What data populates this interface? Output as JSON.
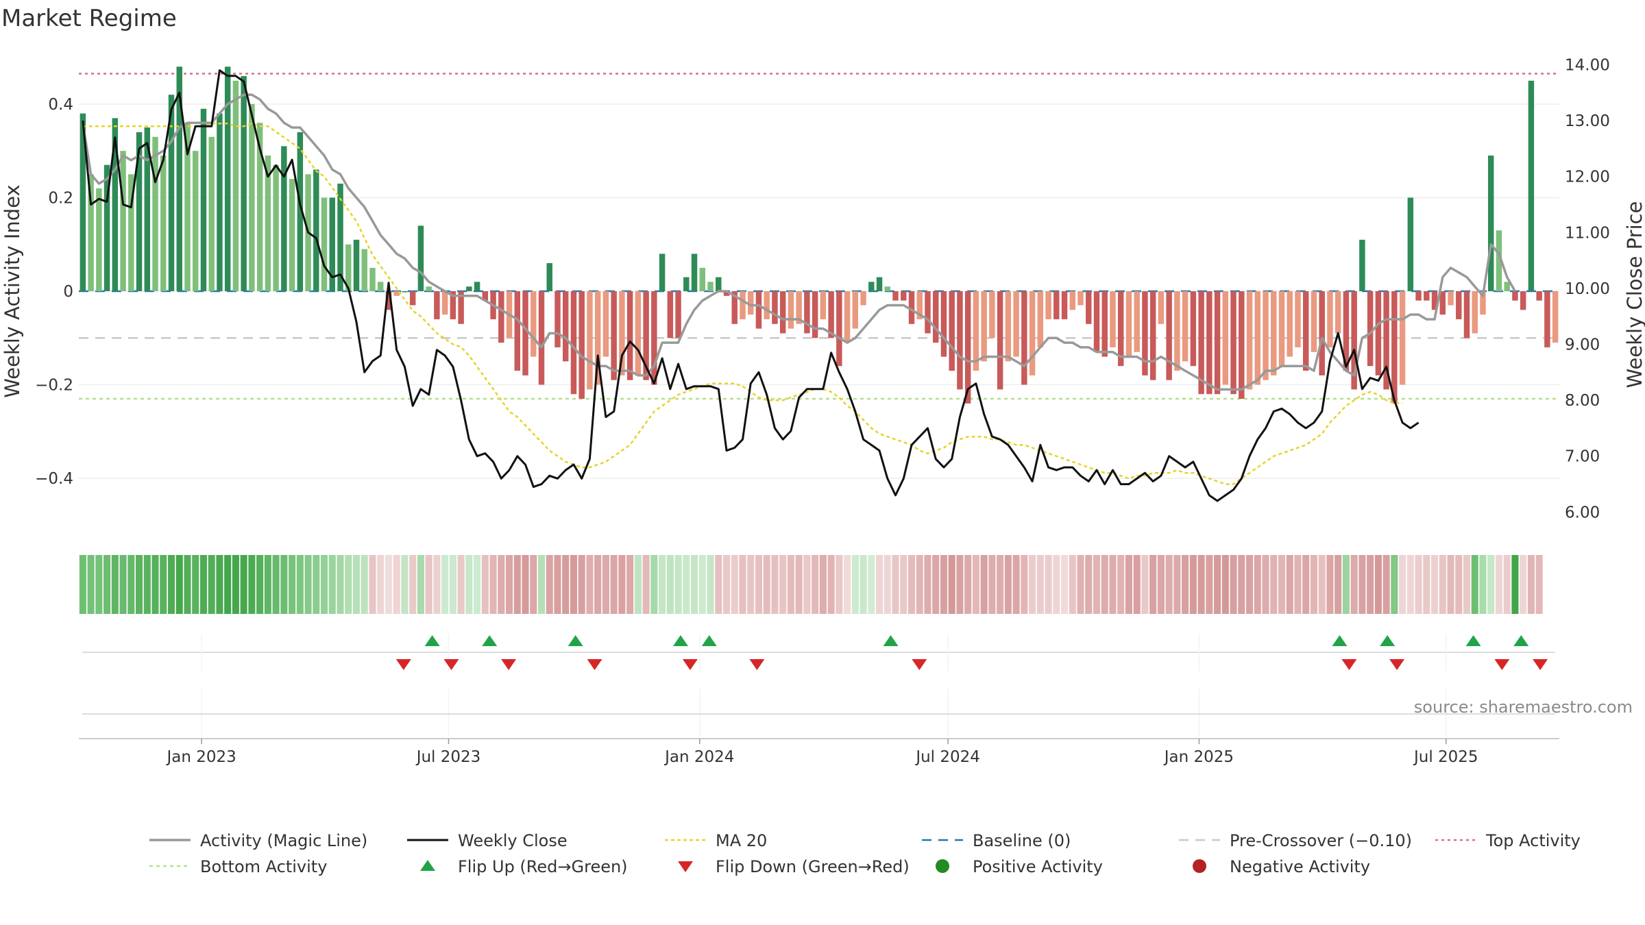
{
  "chart_data": {
    "type": "bar",
    "title": "Market Regime",
    "source": "source: sharemaestro.com",
    "ylabel_left": "Weekly Activity Index",
    "ylabel_right": "Weekly Close Price",
    "ylim_left": [
      -0.52,
      0.52
    ],
    "ylim_right": [
      5.6,
      14.3
    ],
    "left_ticks": [
      {
        "v": 0.4,
        "label": "0.4"
      },
      {
        "v": 0.2,
        "label": "0.2"
      },
      {
        "v": 0,
        "label": "0"
      },
      {
        "v": -0.2,
        "label": "−0.2"
      },
      {
        "v": -0.4,
        "label": "−0.4"
      }
    ],
    "right_ticks": [
      {
        "v": 14,
        "label": "14.00"
      },
      {
        "v": 13,
        "label": "13.00"
      },
      {
        "v": 12,
        "label": "12.00"
      },
      {
        "v": 11,
        "label": "11.00"
      },
      {
        "v": 10,
        "label": "10.00"
      },
      {
        "v": 9,
        "label": "9.00"
      },
      {
        "v": 8,
        "label": "8.00"
      },
      {
        "v": 7,
        "label": "7.00"
      },
      {
        "v": 6,
        "label": "6.00"
      }
    ],
    "x_start": "2022-10-03",
    "x_end": "2025-09-22",
    "x_ticks": [
      {
        "date": "2023-01-01",
        "label": "Jan 2023"
      },
      {
        "date": "2023-07-01",
        "label": "Jul 2023"
      },
      {
        "date": "2024-01-01",
        "label": "Jan 2024"
      },
      {
        "date": "2024-07-01",
        "label": "Jul 2024"
      },
      {
        "date": "2025-01-01",
        "label": "Jan 2025"
      },
      {
        "date": "2025-07-01",
        "label": "Jul 2025"
      }
    ],
    "reference_lines": {
      "top_activity": 0.465,
      "pre_crossover": -0.1,
      "bottom_activity": -0.23,
      "baseline": 0
    },
    "activity_values": [
      0.38,
      0.25,
      0.22,
      0.27,
      0.37,
      0.3,
      0.25,
      0.34,
      0.35,
      0.33,
      0.29,
      0.42,
      0.48,
      0.36,
      0.3,
      0.39,
      0.33,
      0.38,
      0.48,
      0.45,
      0.46,
      0.4,
      0.36,
      0.29,
      0.27,
      0.31,
      0.24,
      0.34,
      0.25,
      0.26,
      0.2,
      0.2,
      0.23,
      0.1,
      0.11,
      0.09,
      0.05,
      0.02,
      -0.04,
      -0.01,
      0.0,
      -0.03,
      0.14,
      0.01,
      -0.06,
      -0.05,
      -0.06,
      -0.07,
      0.01,
      0.02,
      -0.02,
      -0.06,
      -0.11,
      -0.1,
      -0.17,
      -0.18,
      -0.14,
      -0.2,
      0.06,
      -0.12,
      -0.15,
      -0.22,
      -0.23,
      -0.21,
      -0.2,
      -0.14,
      -0.19,
      -0.18,
      -0.19,
      -0.18,
      -0.19,
      -0.2,
      0.08,
      -0.1,
      -0.1,
      0.03,
      0.08,
      0.05,
      0.02,
      0.03,
      -0.01,
      -0.07,
      -0.06,
      -0.05,
      -0.08,
      -0.06,
      -0.07,
      -0.09,
      -0.08,
      -0.07,
      -0.09,
      -0.1,
      -0.06,
      -0.1,
      -0.16,
      -0.11,
      -0.08,
      -0.03,
      0.02,
      0.03,
      0.01,
      -0.02,
      -0.02,
      -0.07,
      -0.06,
      -0.09,
      -0.11,
      -0.14,
      -0.17,
      -0.21,
      -0.24,
      -0.17,
      -0.15,
      -0.1,
      -0.21,
      -0.15,
      -0.14,
      -0.2,
      -0.18,
      -0.12,
      -0.06,
      -0.06,
      -0.06,
      -0.04,
      -0.03,
      -0.07,
      -0.13,
      -0.14,
      -0.12,
      -0.16,
      -0.14,
      -0.13,
      -0.18,
      -0.19,
      -0.07,
      -0.19,
      -0.17,
      -0.15,
      -0.16,
      -0.22,
      -0.22,
      -0.22,
      -0.2,
      -0.22,
      -0.23,
      -0.21,
      -0.2,
      -0.19,
      -0.18,
      -0.16,
      -0.14,
      -0.12,
      -0.17,
      -0.13,
      -0.18,
      -0.12,
      -0.09,
      -0.17,
      -0.21,
      0.11,
      -0.16,
      -0.18,
      -0.21,
      -0.24,
      -0.2,
      0.2,
      -0.02,
      -0.02,
      -0.04,
      -0.05,
      -0.03,
      -0.06,
      -0.1,
      -0.09,
      -0.05,
      0.29,
      0.13,
      0.02,
      -0.02,
      -0.04,
      0.45,
      -0.02,
      -0.12,
      -0.11
    ],
    "price_values": [
      13.0,
      11.5,
      11.6,
      11.55,
      12.7,
      11.5,
      11.45,
      12.5,
      12.6,
      11.9,
      12.3,
      13.2,
      13.5,
      12.4,
      12.9,
      12.9,
      12.9,
      13.9,
      13.8,
      13.8,
      13.7,
      13.1,
      12.5,
      12.0,
      12.2,
      12.0,
      12.3,
      11.5,
      11.0,
      10.9,
      10.4,
      10.2,
      10.25,
      10.0,
      9.4,
      8.5,
      8.7,
      8.8,
      10.1,
      8.9,
      8.6,
      7.9,
      8.2,
      8.1,
      8.9,
      8.8,
      8.6,
      8.0,
      7.3,
      7.0,
      7.05,
      6.9,
      6.6,
      6.75,
      7.0,
      6.85,
      6.45,
      6.5,
      6.65,
      6.6,
      6.75,
      6.85,
      6.6,
      6.95,
      8.8,
      7.7,
      7.8,
      8.8,
      9.05,
      8.9,
      8.6,
      8.3,
      8.75,
      8.2,
      8.65,
      8.2,
      8.25,
      8.25,
      8.25,
      8.2,
      7.1,
      7.15,
      7.3,
      8.3,
      8.5,
      8.1,
      7.5,
      7.3,
      7.45,
      8.05,
      8.2,
      8.2,
      8.2,
      8.85,
      8.5,
      8.2,
      7.8,
      7.3,
      7.2,
      7.1,
      6.6,
      6.3,
      6.6,
      7.2,
      7.35,
      7.5,
      6.95,
      6.8,
      6.95,
      7.7,
      8.2,
      8.3,
      7.75,
      7.35,
      7.3,
      7.2,
      7.0,
      6.8,
      6.55,
      7.2,
      6.8,
      6.75,
      6.8,
      6.8,
      6.65,
      6.55,
      6.75,
      6.5,
      6.75,
      6.5,
      6.5,
      6.6,
      6.7,
      6.55,
      6.65,
      7.0,
      6.9,
      6.8,
      6.9,
      6.6,
      6.3,
      6.2,
      6.3,
      6.4,
      6.6,
      7.0,
      7.3,
      7.5,
      7.8,
      7.85,
      7.75,
      7.6,
      7.5,
      7.6,
      7.8,
      8.7,
      9.2,
      8.6,
      8.9,
      8.2,
      8.4,
      8.35,
      8.6,
      8.0,
      7.6,
      7.5,
      7.6
    ],
    "magic_values": [
      0.36,
      0.25,
      0.23,
      0.24,
      0.26,
      0.29,
      0.28,
      0.29,
      0.28,
      0.29,
      0.3,
      0.32,
      0.35,
      0.36,
      0.36,
      0.36,
      0.36,
      0.38,
      0.4,
      0.41,
      0.42,
      0.42,
      0.41,
      0.39,
      0.38,
      0.36,
      0.35,
      0.35,
      0.33,
      0.31,
      0.29,
      0.26,
      0.25,
      0.22,
      0.2,
      0.18,
      0.15,
      0.12,
      0.1,
      0.08,
      0.07,
      0.05,
      0.04,
      0.02,
      0.01,
      0.0,
      -0.01,
      -0.01,
      -0.01,
      -0.01,
      -0.02,
      -0.03,
      -0.04,
      -0.05,
      -0.06,
      -0.08,
      -0.1,
      -0.12,
      -0.09,
      -0.09,
      -0.1,
      -0.12,
      -0.14,
      -0.15,
      -0.16,
      -0.16,
      -0.17,
      -0.17,
      -0.17,
      -0.18,
      -0.18,
      -0.16,
      -0.11,
      -0.11,
      -0.11,
      -0.07,
      -0.04,
      -0.02,
      -0.01,
      0.0,
      0.0,
      -0.01,
      -0.02,
      -0.03,
      -0.03,
      -0.04,
      -0.05,
      -0.06,
      -0.06,
      -0.06,
      -0.07,
      -0.08,
      -0.08,
      -0.09,
      -0.1,
      -0.11,
      -0.1,
      -0.08,
      -0.06,
      -0.04,
      -0.03,
      -0.03,
      -0.03,
      -0.04,
      -0.05,
      -0.06,
      -0.08,
      -0.1,
      -0.12,
      -0.14,
      -0.15,
      -0.15,
      -0.14,
      -0.14,
      -0.14,
      -0.14,
      -0.15,
      -0.16,
      -0.14,
      -0.12,
      -0.1,
      -0.1,
      -0.11,
      -0.11,
      -0.12,
      -0.12,
      -0.13,
      -0.13,
      -0.13,
      -0.14,
      -0.14,
      -0.14,
      -0.15,
      -0.15,
      -0.14,
      -0.15,
      -0.16,
      -0.17,
      -0.18,
      -0.19,
      -0.2,
      -0.21,
      -0.21,
      -0.21,
      -0.21,
      -0.2,
      -0.19,
      -0.17,
      -0.17,
      -0.16,
      -0.16,
      -0.16,
      -0.16,
      -0.17,
      -0.1,
      -0.13,
      -0.15,
      -0.17,
      -0.18,
      -0.1,
      -0.09,
      -0.07,
      -0.06,
      -0.06,
      -0.06,
      -0.05,
      -0.05,
      -0.06,
      -0.06,
      0.03,
      0.05,
      0.04,
      0.03,
      0.01,
      -0.01,
      0.1,
      0.08,
      0.03,
      0.0
    ],
    "ma20_values": [
      12.9,
      12.9,
      12.9,
      12.9,
      12.9,
      12.9,
      12.9,
      12.9,
      12.9,
      12.9,
      12.9,
      12.9,
      12.9,
      12.9,
      12.9,
      12.9,
      12.95,
      12.95,
      12.95,
      12.9,
      12.9,
      12.95,
      12.9,
      12.9,
      12.8,
      12.7,
      12.6,
      12.5,
      12.3,
      12.1,
      12.0,
      11.8,
      11.6,
      11.4,
      11.2,
      10.9,
      10.6,
      10.4,
      10.2,
      10.0,
      9.8,
      9.6,
      9.5,
      9.35,
      9.2,
      9.1,
      9.0,
      8.95,
      8.8,
      8.6,
      8.4,
      8.2,
      8.0,
      7.8,
      7.7,
      7.55,
      7.4,
      7.25,
      7.1,
      7.0,
      6.9,
      6.85,
      6.8,
      6.8,
      6.85,
      6.9,
      7.0,
      7.1,
      7.2,
      7.4,
      7.6,
      7.8,
      7.9,
      8.0,
      8.1,
      8.15,
      8.2,
      8.25,
      8.3,
      8.3,
      8.3,
      8.3,
      8.25,
      8.15,
      8.05,
      8.0,
      8.0,
      8.0,
      8.05,
      8.1,
      8.15,
      8.2,
      8.2,
      8.15,
      8.05,
      7.9,
      7.8,
      7.65,
      7.5,
      7.4,
      7.35,
      7.3,
      7.25,
      7.2,
      7.1,
      7.05,
      7.1,
      7.15,
      7.25,
      7.3,
      7.35,
      7.35,
      7.35,
      7.3,
      7.3,
      7.25,
      7.2,
      7.2,
      7.15,
      7.1,
      7.05,
      7.0,
      6.95,
      6.9,
      6.85,
      6.8,
      6.75,
      6.7,
      6.7,
      6.65,
      6.6,
      6.65,
      6.65,
      6.7,
      6.7,
      6.7,
      6.75,
      6.7,
      6.7,
      6.65,
      6.6,
      6.55,
      6.5,
      6.5,
      6.6,
      6.7,
      6.8,
      6.9,
      7.0,
      7.05,
      7.1,
      7.15,
      7.2,
      7.3,
      7.4,
      7.6,
      7.75,
      7.9,
      8.0,
      8.1,
      8.15,
      8.1,
      8.0,
      7.95,
      7.95
    ],
    "strip_colors": [
      "#6fbf73",
      "#73c277",
      "#75c27a",
      "#6dbd71",
      "#5fb565",
      "#68ba6c",
      "#66b96a",
      "#5bb361",
      "#5ab260",
      "#56b05c",
      "#5ab260",
      "#4fac55",
      "#46a84c",
      "#53ae59",
      "#5ab260",
      "#4fac55",
      "#53ae59",
      "#4ca952",
      "#44a64a",
      "#45a64b",
      "#47a74d",
      "#4dab53",
      "#55af5b",
      "#60b566",
      "#68ba6c",
      "#6cbd70",
      "#77c37b",
      "#7dc681",
      "#86ca89",
      "#8ccd8f",
      "#94d197",
      "#9ad49d",
      "#a3d8a5",
      "#b1deb2",
      "#b6e0b7",
      "#bde3be",
      "#e8c5c5",
      "#eed5d5",
      "#eedddd",
      "#f1d3d3",
      "#c3e5c4",
      "#eac9c9",
      "#a8daab",
      "#e8c5c5",
      "#ecd0d0",
      "#ccead0",
      "#cbe9cd",
      "#e9c8c8",
      "#c6e7c8",
      "#ccead0",
      "#e6c0c0",
      "#e2b5b5",
      "#deacac",
      "#dba6a6",
      "#d79d9d",
      "#d59a9a",
      "#dba7a7",
      "#b5dfb6",
      "#daa4a4",
      "#d89f9f",
      "#d69b9b",
      "#d59a9a",
      "#d8a0a0",
      "#dfaeae",
      "#dba6a6",
      "#dcaaaa",
      "#dba6a6",
      "#d9a2a2",
      "#dca9a9",
      "#bfe3c0",
      "#e3b8b8",
      "#a7d9aa",
      "#c4e6c5",
      "#bfe3c0",
      "#c4e6c5",
      "#c9e8ca",
      "#c4e6c5",
      "#cdead0",
      "#c4e6c5",
      "#e6c0c0",
      "#e9c8c8",
      "#ebcccc",
      "#e6c0c0",
      "#e8c5c5",
      "#e6c0c0",
      "#e4bbbb",
      "#e6c0c0",
      "#e8c5c5",
      "#e4bbbb",
      "#e3b8b8",
      "#e9c8c8",
      "#e3b8b8",
      "#ddacac",
      "#e1b3b3",
      "#e9c8c8",
      "#f0dada",
      "#cceacd",
      "#c9e8ca",
      "#d2ecd3",
      "#eed5d5",
      "#eed5d5",
      "#e8c5c5",
      "#e9c8c8",
      "#e4bbbb",
      "#e2b5b5",
      "#deacac",
      "#dba6a6",
      "#d8a0a0",
      "#d49898",
      "#d9a2a2",
      "#dcaaaa",
      "#e3b8b8",
      "#d8a0a0",
      "#ddacac",
      "#deacac",
      "#d9a2a2",
      "#dba6a6",
      "#e2b5b5",
      "#ebcccc",
      "#ebcccc",
      "#ebcccc",
      "#eed5d5",
      "#f0dada",
      "#e8c5c5",
      "#e0b2b2",
      "#deacac",
      "#e1b3b3",
      "#ddacac",
      "#deacac",
      "#e0b2b2",
      "#d9a2a2",
      "#d8a0a0",
      "#e9c8c8",
      "#d8a0a0",
      "#dba6a6",
      "#ddacac",
      "#dcaaaa",
      "#d6a0a0",
      "#d59a9a",
      "#d59a9a",
      "#d8a0a0",
      "#d59a9a",
      "#d49898",
      "#d6a0a0",
      "#d8a0a0",
      "#d9a2a2",
      "#dba6a6",
      "#ddacac",
      "#e0b2b2",
      "#e2b5b5",
      "#dba6a6",
      "#e1b3b3",
      "#dba6a6",
      "#e2b5b5",
      "#e6c0c0",
      "#dba6a6",
      "#d6a0a0",
      "#9bd49e",
      "#dcaaaa",
      "#d9a2a2",
      "#d6a0a0",
      "#d49898",
      "#d8a0a0",
      "#82c886",
      "#eed5d5",
      "#eed5d5",
      "#ebcccc",
      "#e9c8c8",
      "#ecd0d0",
      "#e8c5c5",
      "#e3b8b8",
      "#e4bbbb",
      "#e9c8c8",
      "#6ebe72",
      "#a9dbab",
      "#c6e7c8",
      "#eed5d5",
      "#ebcccc",
      "#42a548",
      "#eed5d5",
      "#e2b5b5",
      "#e3b8b8"
    ],
    "flip_up_dates": [
      "2023-06-19",
      "2023-07-31",
      "2023-10-02",
      "2023-12-18",
      "2024-01-08",
      "2024-05-20",
      "2025-04-14",
      "2025-05-19",
      "2025-07-21",
      "2025-08-25"
    ],
    "flip_down_dates": [
      "2023-05-29",
      "2023-07-03",
      "2023-08-14",
      "2023-10-16",
      "2023-12-25",
      "2024-02-12",
      "2024-06-10",
      "2025-04-21",
      "2025-05-26",
      "2025-08-11",
      "2025-09-08"
    ],
    "legend": [
      {
        "label": "Activity (Magic Line)",
        "key": "magic"
      },
      {
        "label": "Weekly Close",
        "key": "close"
      },
      {
        "label": "MA 20",
        "key": "ma20"
      },
      {
        "label": "Baseline (0)",
        "key": "baseline"
      },
      {
        "label": "Pre-Crossover (−0.10)",
        "key": "pre"
      },
      {
        "label": "Top Activity",
        "key": "top"
      },
      {
        "label": "Bottom Activity",
        "key": "bottom"
      },
      {
        "label": "Flip Up (Red→Green)",
        "key": "flipup"
      },
      {
        "label": "Flip Down (Green→Red)",
        "key": "flipdown"
      },
      {
        "label": "Positive Activity",
        "key": "pos"
      },
      {
        "label": "Negative Activity",
        "key": "neg"
      }
    ]
  },
  "colors": {
    "pos_strong": "#2e8b57",
    "pos_light": "#7fbf7b",
    "neg_strong": "#c85a5a",
    "neg_light": "#e99a80",
    "close": "#111111",
    "magic": "#999999",
    "ma20": "#e6d42a",
    "baseline": "#1f77b4",
    "pre": "#c8c8c8",
    "top": "#d4708a",
    "bottom": "#b5e08a",
    "flip_up": "#22a34a",
    "flip_down": "#d62728",
    "pos_dot": "#228b22",
    "neg_dot": "#b22222"
  }
}
